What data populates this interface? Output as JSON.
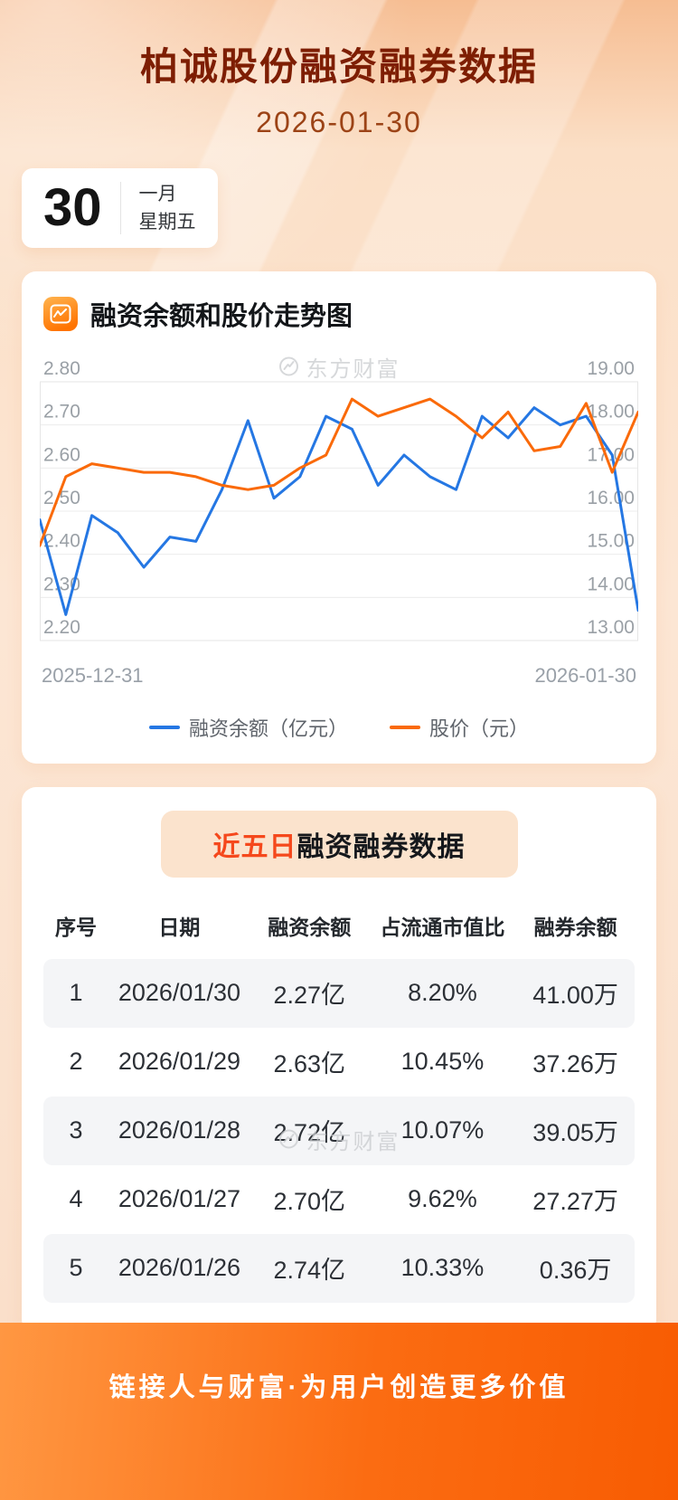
{
  "header": {
    "title": "柏诚股份融资融券数据",
    "date": "2026-01-30"
  },
  "date_card": {
    "day": "30",
    "month": "一月",
    "weekday": "星期五"
  },
  "chart_section": {
    "title": "融资余额和股价走势图",
    "watermark": "东方财富",
    "x_start": "2025-12-31",
    "x_end": "2026-01-30"
  },
  "chart_data": {
    "type": "line",
    "title": "融资余额和股价走势图",
    "x_range": [
      "2025-12-31",
      "2026-01-30"
    ],
    "grid": true,
    "legend_position": "bottom",
    "left_axis": {
      "min": 2.2,
      "max": 2.8,
      "ticks": [
        "2.80",
        "2.70",
        "2.60",
        "2.50",
        "2.40",
        "2.30",
        "2.20"
      ]
    },
    "right_axis": {
      "min": 13.0,
      "max": 19.0,
      "ticks": [
        "19.00",
        "18.00",
        "17.00",
        "16.00",
        "15.00",
        "14.00",
        "13.00"
      ]
    },
    "series": [
      {
        "name": "融资余额（亿元）",
        "axis": "left",
        "color": "#2577e3",
        "values": [
          2.48,
          2.26,
          2.49,
          2.45,
          2.37,
          2.44,
          2.43,
          2.55,
          2.71,
          2.53,
          2.58,
          2.72,
          2.69,
          2.56,
          2.63,
          2.58,
          2.55,
          2.72,
          2.67,
          2.74,
          2.7,
          2.72,
          2.63,
          2.27
        ]
      },
      {
        "name": "股价（元）",
        "axis": "right",
        "color": "#fa6a0a",
        "values": [
          15.2,
          16.8,
          17.1,
          17.0,
          16.9,
          16.9,
          16.8,
          16.6,
          16.5,
          16.6,
          17.0,
          17.3,
          18.6,
          18.2,
          18.4,
          18.6,
          18.2,
          17.7,
          18.3,
          17.4,
          17.5,
          18.5,
          16.9,
          18.3
        ]
      }
    ]
  },
  "table_section": {
    "title_highlight": "近五日",
    "title_rest": "融资融券数据",
    "watermark": "东方财富",
    "columns": [
      "序号",
      "日期",
      "融资余额",
      "占流通市值比",
      "融券余额"
    ],
    "rows": [
      [
        "1",
        "2026/01/30",
        "2.27亿",
        "8.20%",
        "41.00万"
      ],
      [
        "2",
        "2026/01/29",
        "2.63亿",
        "10.45%",
        "37.26万"
      ],
      [
        "3",
        "2026/01/28",
        "2.72亿",
        "10.07%",
        "39.05万"
      ],
      [
        "4",
        "2026/01/27",
        "2.70亿",
        "9.62%",
        "27.27万"
      ],
      [
        "5",
        "2026/01/26",
        "2.74亿",
        "10.33%",
        "0.36万"
      ]
    ]
  },
  "footer": {
    "slogan": "链接人与财富·为用户创造更多价值"
  },
  "colors": {
    "blue": "#2577e3",
    "orange": "#fa6a0a",
    "title": "#7e1e03",
    "footer_gradient_start": "#ff9742",
    "footer_gradient_end": "#f85c02"
  }
}
